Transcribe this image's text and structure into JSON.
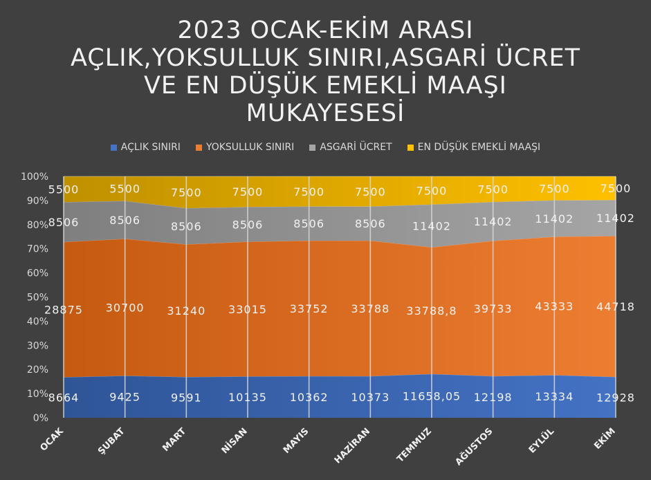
{
  "title_lines": [
    "2023 OCAK-EKİM ARASI",
    "AÇLIK,YOKSULLUK SINIRI,ASGARİ ÜCRET",
    "VE EN DÜŞÜK EMEKLİ MAAŞI",
    "MUKAYESESİ"
  ],
  "chart_data": {
    "type": "area",
    "stacking": "percent",
    "title": "2023 OCAK-EKİM ARASI AÇLIK,YOKSULLUK SINIRI,ASGARİ ÜCRET VE EN DÜŞÜK EMEKLİ MAAŞI MUKAYESESİ",
    "categories": [
      "OCAK",
      "ŞUBAT",
      "MART",
      "NİSAN",
      "MAYIS",
      "HAZİRAN",
      "TEMMUZ",
      "AĞUSTOS",
      "EYLÜL",
      "EKİM"
    ],
    "series": [
      {
        "name": "AÇLIK SINIRI",
        "color": "#4472c4",
        "values": [
          8664,
          9425,
          9591,
          10135,
          10362,
          10373,
          11658.05,
          12198,
          13334,
          12928
        ],
        "labels": [
          "8664",
          "9425",
          "9591",
          "10135",
          "10362",
          "10373",
          "11658,05",
          "12198",
          "13334",
          "12928"
        ]
      },
      {
        "name": "YOKSULLUK SINIRI",
        "color": "#ed7d31",
        "values": [
          28875,
          30700,
          31240,
          33015,
          33752,
          33788,
          33788.8,
          39733,
          43333,
          44718
        ],
        "labels": [
          "28875",
          "30700",
          "31240",
          "33015",
          "33752",
          "33788",
          "33788,8",
          "39733",
          "43333",
          "44718"
        ]
      },
      {
        "name": "ASGARİ ÜCRET",
        "color": "#a5a5a5",
        "values": [
          8506,
          8506,
          8506,
          8506,
          8506,
          8506,
          11402,
          11402,
          11402,
          11402
        ],
        "labels": [
          "8506",
          "8506",
          "8506",
          "8506",
          "8506",
          "8506",
          "11402",
          "11402",
          "11402",
          "11402"
        ]
      },
      {
        "name": "EN DÜŞÜK EMEKLİ MAAŞI",
        "color": "#ffc000",
        "values": [
          5500,
          5500,
          7500,
          7500,
          7500,
          7500,
          7500,
          7500,
          7500,
          7500
        ],
        "labels": [
          "5500",
          "5500",
          "7500",
          "7500",
          "7500",
          "7500",
          "7500",
          "7500",
          "7500",
          "7500"
        ]
      }
    ],
    "y_ticks": [
      "0%",
      "10%",
      "20%",
      "30%",
      "40%",
      "50%",
      "60%",
      "70%",
      "80%",
      "90%",
      "100%"
    ],
    "ylim": [
      0,
      100
    ],
    "grid": "vertical",
    "legend": "top"
  }
}
